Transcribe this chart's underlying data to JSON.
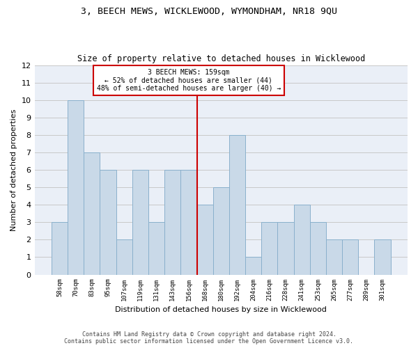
{
  "title": "3, BEECH MEWS, WICKLEWOOD, WYMONDHAM, NR18 9QU",
  "subtitle": "Size of property relative to detached houses in Wicklewood",
  "xlabel": "Distribution of detached houses by size in Wicklewood",
  "ylabel": "Number of detached properties",
  "footer_line1": "Contains HM Land Registry data © Crown copyright and database right 2024.",
  "footer_line2": "Contains public sector information licensed under the Open Government Licence v3.0.",
  "categories": [
    "58sqm",
    "70sqm",
    "83sqm",
    "95sqm",
    "107sqm",
    "119sqm",
    "131sqm",
    "143sqm",
    "156sqm",
    "168sqm",
    "180sqm",
    "192sqm",
    "204sqm",
    "216sqm",
    "228sqm",
    "241sqm",
    "253sqm",
    "265sqm",
    "277sqm",
    "289sqm",
    "301sqm"
  ],
  "values": [
    3,
    10,
    7,
    6,
    2,
    6,
    3,
    6,
    6,
    4,
    5,
    8,
    1,
    3,
    3,
    4,
    3,
    2,
    2,
    0,
    2
  ],
  "bar_color": "#c9d9e8",
  "bar_edge_color": "#8ab0cc",
  "grid_color": "#c8c8c8",
  "background_color": "#eaeff7",
  "annotation_box_color": "#cc0000",
  "vline_color": "#cc0000",
  "vline_x_index": 8,
  "annotation_text_line1": "3 BEECH MEWS: 159sqm",
  "annotation_text_line2": "← 52% of detached houses are smaller (44)",
  "annotation_text_line3": "48% of semi-detached houses are larger (40) →",
  "ylim": [
    0,
    12
  ],
  "yticks": [
    0,
    1,
    2,
    3,
    4,
    5,
    6,
    7,
    8,
    9,
    10,
    11,
    12
  ]
}
